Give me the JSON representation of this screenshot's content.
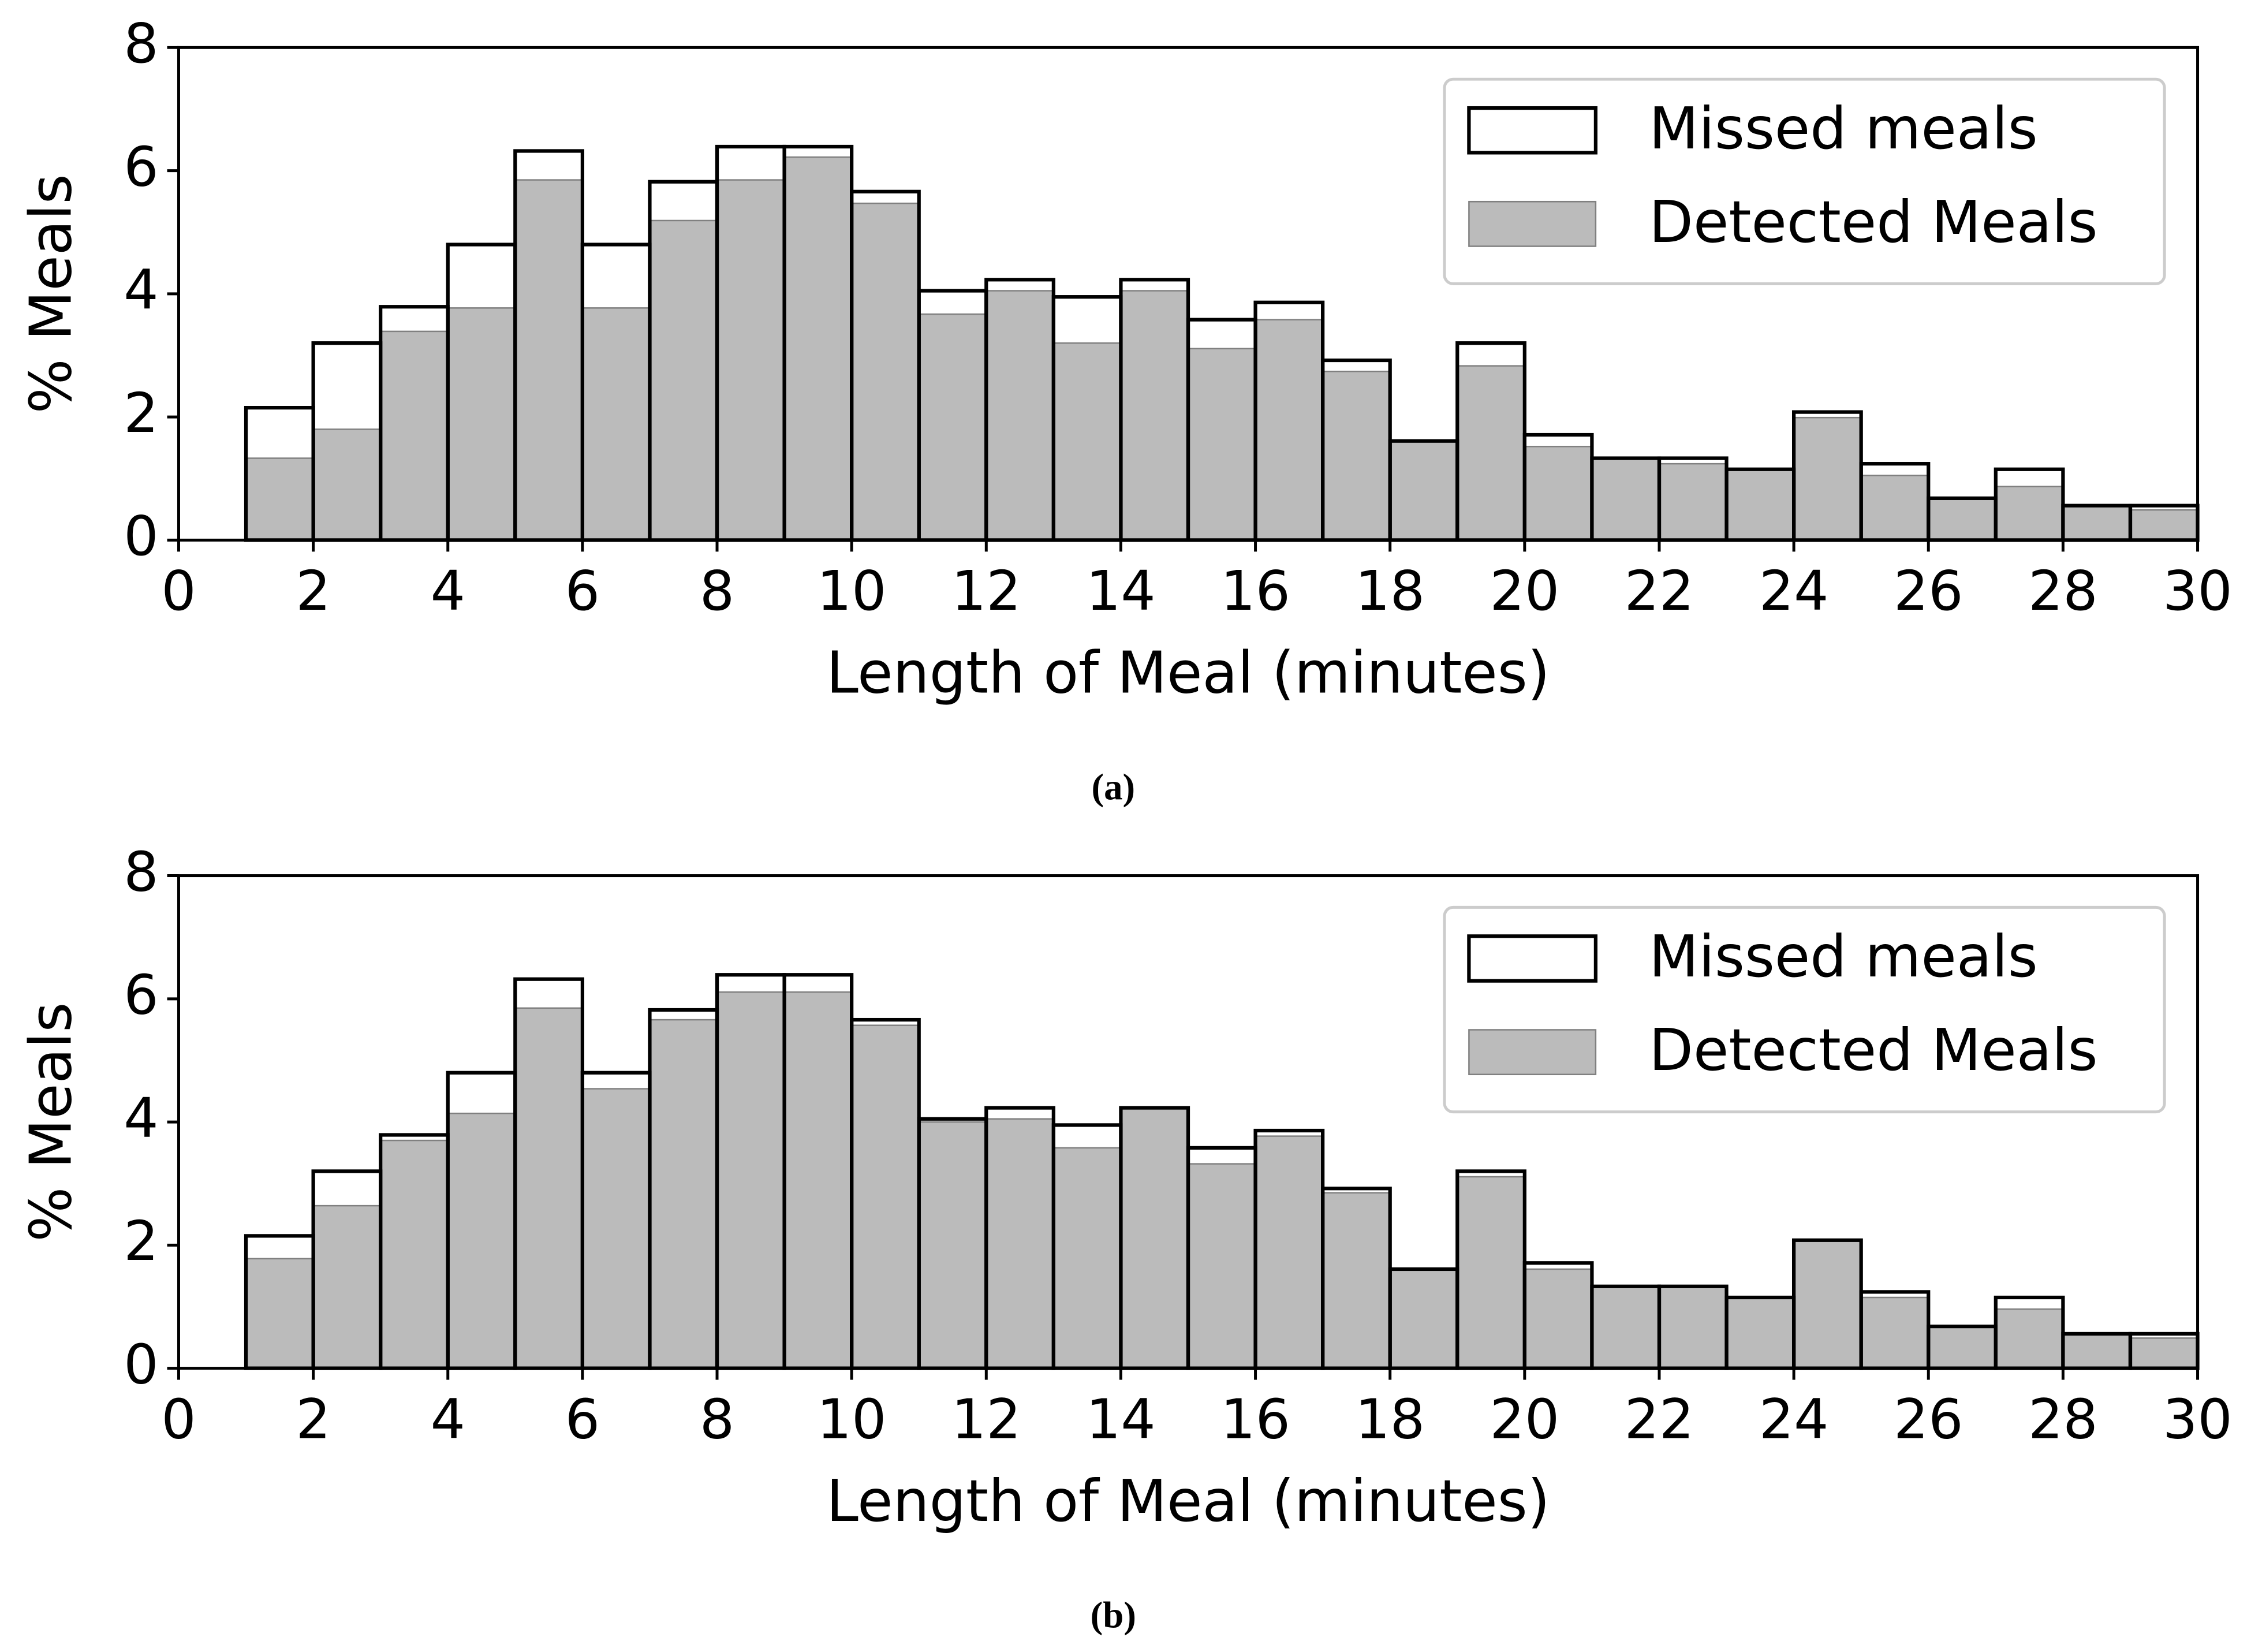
{
  "chart_data": [
    {
      "type": "histogram",
      "caption": "(a)",
      "xlabel": "Length of Meal (minutes)",
      "ylabel": "% Meals",
      "bins": [
        0,
        1,
        2,
        3,
        4,
        5,
        6,
        7,
        8,
        9,
        10,
        11,
        12,
        13,
        14,
        15,
        16,
        17,
        18,
        19,
        20,
        21,
        22,
        23,
        24,
        25,
        26,
        27,
        28,
        29,
        30
      ],
      "series": [
        {
          "name": "Missed meals",
          "color": "#000000",
          "style": "outline",
          "values": [
            0,
            2.15,
            3.2,
            3.79,
            4.8,
            6.32,
            4.8,
            5.82,
            6.39,
            6.39,
            5.66,
            4.05,
            4.23,
            3.95,
            4.23,
            3.58,
            3.86,
            2.92,
            1.61,
            3.2,
            1.71,
            1.33,
            1.33,
            1.15,
            2.08,
            1.24,
            0.68,
            1.15,
            0.56,
            0.56
          ]
        },
        {
          "name": "Detected Meals",
          "color": "#bbbbbb",
          "style": "filled",
          "values": [
            0,
            1.33,
            1.8,
            3.39,
            3.77,
            5.85,
            3.77,
            5.19,
            5.85,
            6.22,
            5.47,
            3.67,
            4.05,
            3.2,
            4.05,
            3.11,
            3.58,
            2.74,
            1.61,
            2.83,
            1.52,
            1.33,
            1.24,
            1.15,
            1.99,
            1.05,
            0.68,
            0.87,
            0.56,
            0.49
          ]
        }
      ],
      "xlim": [
        0,
        30
      ],
      "xticks": [
        0,
        2,
        4,
        6,
        8,
        10,
        12,
        14,
        16,
        18,
        20,
        22,
        24,
        26,
        28,
        30
      ],
      "ylim": [
        0,
        8
      ],
      "yticks": [
        0,
        2,
        4,
        6,
        8
      ],
      "legend": "upper right"
    },
    {
      "type": "histogram",
      "caption": "(b)",
      "xlabel": "Length of Meal (minutes)",
      "ylabel": "% Meals",
      "bins": [
        0,
        1,
        2,
        3,
        4,
        5,
        6,
        7,
        8,
        9,
        10,
        11,
        12,
        13,
        14,
        15,
        16,
        17,
        18,
        19,
        20,
        21,
        22,
        23,
        24,
        25,
        26,
        27,
        28,
        29,
        30
      ],
      "series": [
        {
          "name": "Missed meals",
          "color": "#000000",
          "style": "outline",
          "values": [
            0,
            2.15,
            3.2,
            3.79,
            4.8,
            6.32,
            4.8,
            5.82,
            6.39,
            6.39,
            5.66,
            4.05,
            4.23,
            3.95,
            4.23,
            3.58,
            3.86,
            2.92,
            1.61,
            3.2,
            1.71,
            1.33,
            1.33,
            1.15,
            2.08,
            1.24,
            0.68,
            1.15,
            0.56,
            0.56
          ]
        },
        {
          "name": "Detected Meals",
          "color": "#bbbbbb",
          "style": "filled",
          "values": [
            0,
            1.78,
            2.64,
            3.7,
            4.14,
            5.85,
            4.54,
            5.66,
            6.11,
            6.11,
            5.57,
            4.0,
            4.05,
            3.58,
            4.23,
            3.32,
            3.77,
            2.85,
            1.61,
            3.11,
            1.61,
            1.33,
            1.33,
            1.15,
            2.08,
            1.15,
            0.68,
            0.96,
            0.56,
            0.49
          ]
        }
      ],
      "xlim": [
        0,
        30
      ],
      "xticks": [
        0,
        2,
        4,
        6,
        8,
        10,
        12,
        14,
        16,
        18,
        20,
        22,
        24,
        26,
        28,
        30
      ],
      "ylim": [
        0,
        8
      ],
      "yticks": [
        0,
        2,
        4,
        6,
        8
      ],
      "legend": "upper right"
    }
  ]
}
